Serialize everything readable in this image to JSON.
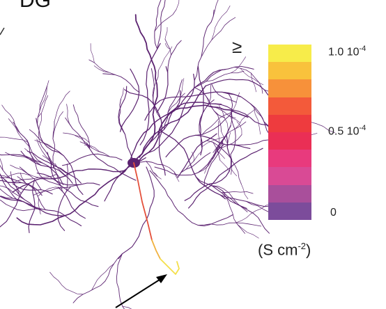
{
  "panel": {
    "title": "DG"
  },
  "colorbar": {
    "ge_symbol": "≥",
    "colors": [
      "#f7ec4a",
      "#f9c23c",
      "#f7913a",
      "#f35a3a",
      "#ee3b3e",
      "#ea2f55",
      "#e83a7d",
      "#d94a95",
      "#a94f9b",
      "#7c4c9b"
    ],
    "ticks": [
      {
        "base": "1.0 10",
        "exp": "-4"
      },
      {
        "base": "0.5 10",
        "exp": "-4"
      },
      {
        "base": "0",
        "exp": ""
      }
    ],
    "unit": {
      "prefix": "(S cm",
      "exp": "-2",
      "suffix": ")"
    }
  },
  "neuron": {
    "color": "#5b2270",
    "highlight_colors": [
      "#e4503b",
      "#f0b13e",
      "#f4df4a"
    ]
  },
  "annotation": {
    "arrow_color": "#000000"
  }
}
